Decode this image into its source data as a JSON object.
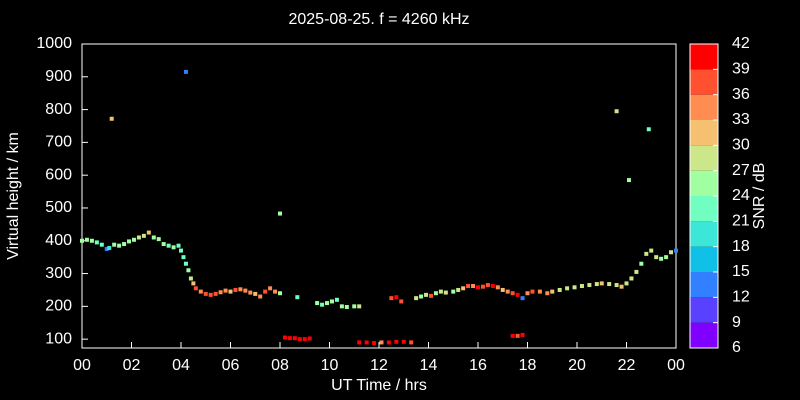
{
  "chart_data": {
    "type": "scatter",
    "title": "2025-08-25. f = 4260 kHz",
    "x_label": "UT Time / hrs",
    "y_label": "Virtual height / km",
    "xlim": [
      0,
      24
    ],
    "xticks": [
      {
        "value": 0,
        "label": "00"
      },
      {
        "value": 2,
        "label": "02"
      },
      {
        "value": 4,
        "label": "04"
      },
      {
        "value": 6,
        "label": "06"
      },
      {
        "value": 8,
        "label": "08"
      },
      10,
      12,
      14,
      16,
      18,
      20,
      22,
      {
        "value": 24,
        "label": "00"
      }
    ],
    "ylim": [
      73,
      1000
    ],
    "yticks": [
      100,
      200,
      300,
      400,
      500,
      600,
      700,
      800,
      900,
      1000
    ],
    "colorbar": {
      "label": "SNR / dB",
      "lim": [
        6,
        42
      ],
      "ticks": [
        6,
        9,
        12,
        15,
        18,
        21,
        24,
        27,
        30,
        33,
        36,
        39,
        42
      ],
      "colors": [
        "#8000ff",
        "#5a40ff",
        "#3080ff",
        "#10c0e6",
        "#3ce6d8",
        "#70ffc0",
        "#a0ffa0",
        "#cce68a",
        "#f5c070",
        "#ff8c50",
        "#ff5030",
        "#ff0000"
      ]
    },
    "series": [
      {
        "x": [
          0,
          0.2,
          0.4,
          0.6,
          0.8,
          1.0,
          1.1,
          1.3,
          1.5,
          1.7,
          1.9,
          2.1,
          2.3,
          2.5,
          2.7,
          2.9,
          3.1,
          3.3,
          3.5,
          3.7,
          3.9,
          4.0,
          4.1,
          4.2,
          4.3,
          4.4,
          4.5,
          4.6,
          4.8,
          5.0,
          5.2,
          5.4,
          5.6,
          5.8,
          6.0,
          6.2,
          6.4,
          6.6,
          6.8,
          7.0,
          7.2,
          7.4,
          7.6,
          7.8,
          8.0,
          1.2,
          4.2,
          8.0,
          21.6,
          22.1,
          22.9,
          8.2,
          8.4,
          8.6,
          8.8,
          9.0,
          9.2,
          8.7,
          9.5,
          9.7,
          9.9,
          10.1,
          10.3,
          10.5,
          10.7,
          11.0,
          11.2,
          11.2,
          11.5,
          11.8,
          12.1,
          12.4,
          12.7,
          13.0,
          13.3,
          12.5,
          12.7,
          12.9,
          13.5,
          13.7,
          13.9,
          14.1,
          14.3,
          14.5,
          14.7,
          15.0,
          15.2,
          15.4,
          15.6,
          15.8,
          16.0,
          16.2,
          16.4,
          16.6,
          16.8,
          17.0,
          17.2,
          17.4,
          17.6,
          17.8,
          18.0,
          18.2,
          18.5,
          18.8,
          19.0,
          19.3,
          19.6,
          19.9,
          20.2,
          20.5,
          20.8,
          21.0,
          21.3,
          21.6,
          21.8,
          22.0,
          22.2,
          22.4,
          22.6,
          22.8,
          23.0,
          23.2,
          23.4,
          23.6,
          23.8,
          24.0,
          17.4,
          17.6,
          17.8
        ],
        "values": [
          400,
          403,
          400,
          395,
          388,
          375,
          378,
          388,
          385,
          390,
          398,
          403,
          410,
          415,
          425,
          410,
          405,
          390,
          385,
          380,
          385,
          370,
          350,
          330,
          310,
          285,
          270,
          255,
          245,
          238,
          235,
          238,
          243,
          248,
          245,
          250,
          252,
          248,
          242,
          238,
          230,
          245,
          255,
          245,
          240,
          772,
          915,
          483,
          795,
          585,
          740,
          105,
          103,
          103,
          100,
          100,
          102,
          228,
          210,
          205,
          210,
          215,
          220,
          200,
          198,
          200,
          200,
          90,
          90,
          88,
          90,
          90,
          92,
          92,
          90,
          225,
          228,
          215,
          225,
          230,
          235,
          232,
          240,
          245,
          242,
          245,
          250,
          255,
          262,
          262,
          258,
          260,
          265,
          262,
          258,
          250,
          245,
          240,
          235,
          225,
          240,
          245,
          245,
          240,
          245,
          250,
          255,
          258,
          262,
          265,
          268,
          270,
          268,
          265,
          260,
          270,
          285,
          305,
          330,
          360,
          370,
          350,
          345,
          350,
          365,
          370,
          110,
          110,
          113
        ],
        "snr": [
          24,
          24,
          24,
          21,
          21,
          12,
          18,
          24,
          24,
          24,
          24,
          24,
          27,
          27,
          30,
          24,
          24,
          24,
          21,
          24,
          21,
          21,
          21,
          21,
          24,
          27,
          30,
          36,
          33,
          36,
          36,
          36,
          33,
          33,
          30,
          36,
          33,
          33,
          33,
          30,
          33,
          36,
          33,
          33,
          24,
          30,
          12,
          24,
          27,
          24,
          21,
          42,
          42,
          39,
          42,
          42,
          39,
          21,
          24,
          21,
          24,
          24,
          21,
          24,
          24,
          24,
          27,
          42,
          42,
          39,
          33,
          39,
          39,
          39,
          36,
          36,
          39,
          36,
          27,
          24,
          27,
          36,
          24,
          27,
          27,
          24,
          27,
          30,
          36,
          33,
          39,
          36,
          36,
          39,
          33,
          30,
          33,
          36,
          39,
          12,
          33,
          36,
          33,
          33,
          30,
          27,
          27,
          27,
          27,
          27,
          27,
          30,
          27,
          27,
          30,
          27,
          27,
          27,
          24,
          27,
          27,
          27,
          24,
          24,
          27,
          12,
          39,
          36,
          39
        ]
      }
    ]
  }
}
